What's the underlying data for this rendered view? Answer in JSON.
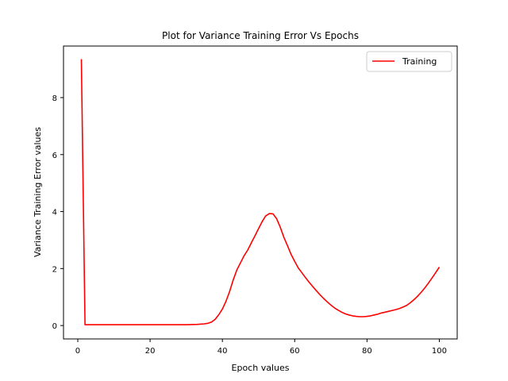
{
  "chart_data": {
    "type": "line",
    "title": "Plot for Variance Training Error Vs Epochs",
    "xlabel": "Epoch values",
    "ylabel": "Variance Training Error values",
    "xlim": [
      -3.95,
      104.95
    ],
    "ylim": [
      -0.47,
      9.81
    ],
    "xticks": [
      0,
      20,
      40,
      60,
      80,
      100
    ],
    "yticks": [
      0,
      2,
      4,
      6,
      8
    ],
    "grid": false,
    "legend_position": "upper right",
    "series": [
      {
        "name": "Training",
        "color": "#ff0000",
        "x": [
          1,
          2,
          3,
          5,
          10,
          15,
          20,
          25,
          30,
          33,
          35,
          36,
          37,
          38,
          39,
          40,
          41,
          42,
          43,
          44,
          45,
          46,
          47,
          48,
          49,
          50,
          51,
          52,
          53,
          54,
          55,
          56,
          57,
          58,
          59,
          60,
          61,
          62,
          63,
          64,
          65,
          66,
          67,
          68,
          69,
          70,
          71,
          72,
          73,
          74,
          75,
          76,
          77,
          78,
          79,
          80,
          81,
          82,
          83,
          84,
          85,
          86,
          87,
          88,
          89,
          90,
          91,
          92,
          93,
          94,
          95,
          96,
          97,
          98,
          99,
          100
        ],
        "y": [
          9.35,
          0.03,
          0.03,
          0.03,
          0.03,
          0.03,
          0.03,
          0.03,
          0.03,
          0.04,
          0.06,
          0.08,
          0.12,
          0.22,
          0.38,
          0.58,
          0.85,
          1.2,
          1.6,
          1.95,
          2.2,
          2.45,
          2.65,
          2.9,
          3.15,
          3.4,
          3.65,
          3.85,
          3.93,
          3.92,
          3.75,
          3.45,
          3.1,
          2.8,
          2.5,
          2.25,
          2.02,
          1.85,
          1.68,
          1.52,
          1.37,
          1.22,
          1.08,
          0.95,
          0.83,
          0.72,
          0.62,
          0.54,
          0.47,
          0.41,
          0.37,
          0.34,
          0.32,
          0.31,
          0.31,
          0.32,
          0.34,
          0.37,
          0.4,
          0.44,
          0.47,
          0.5,
          0.53,
          0.56,
          0.6,
          0.65,
          0.71,
          0.8,
          0.91,
          1.03,
          1.17,
          1.32,
          1.49,
          1.67,
          1.86,
          2.05
        ]
      }
    ]
  }
}
